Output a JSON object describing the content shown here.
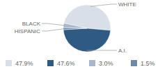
{
  "chart_data": {
    "type": "pie",
    "categories": [
      "WHITE",
      "A.I.",
      "BLACK",
      "HISPANIC"
    ],
    "values": [
      47.9,
      47.6,
      3.0,
      1.5
    ],
    "value_labels": [
      "47.9%",
      "47.6%",
      "3.0%",
      "1.5%"
    ],
    "colors": [
      "#d9dfe8",
      "#2f5a84",
      "#a8b7cb",
      "#6e89a7"
    ]
  }
}
